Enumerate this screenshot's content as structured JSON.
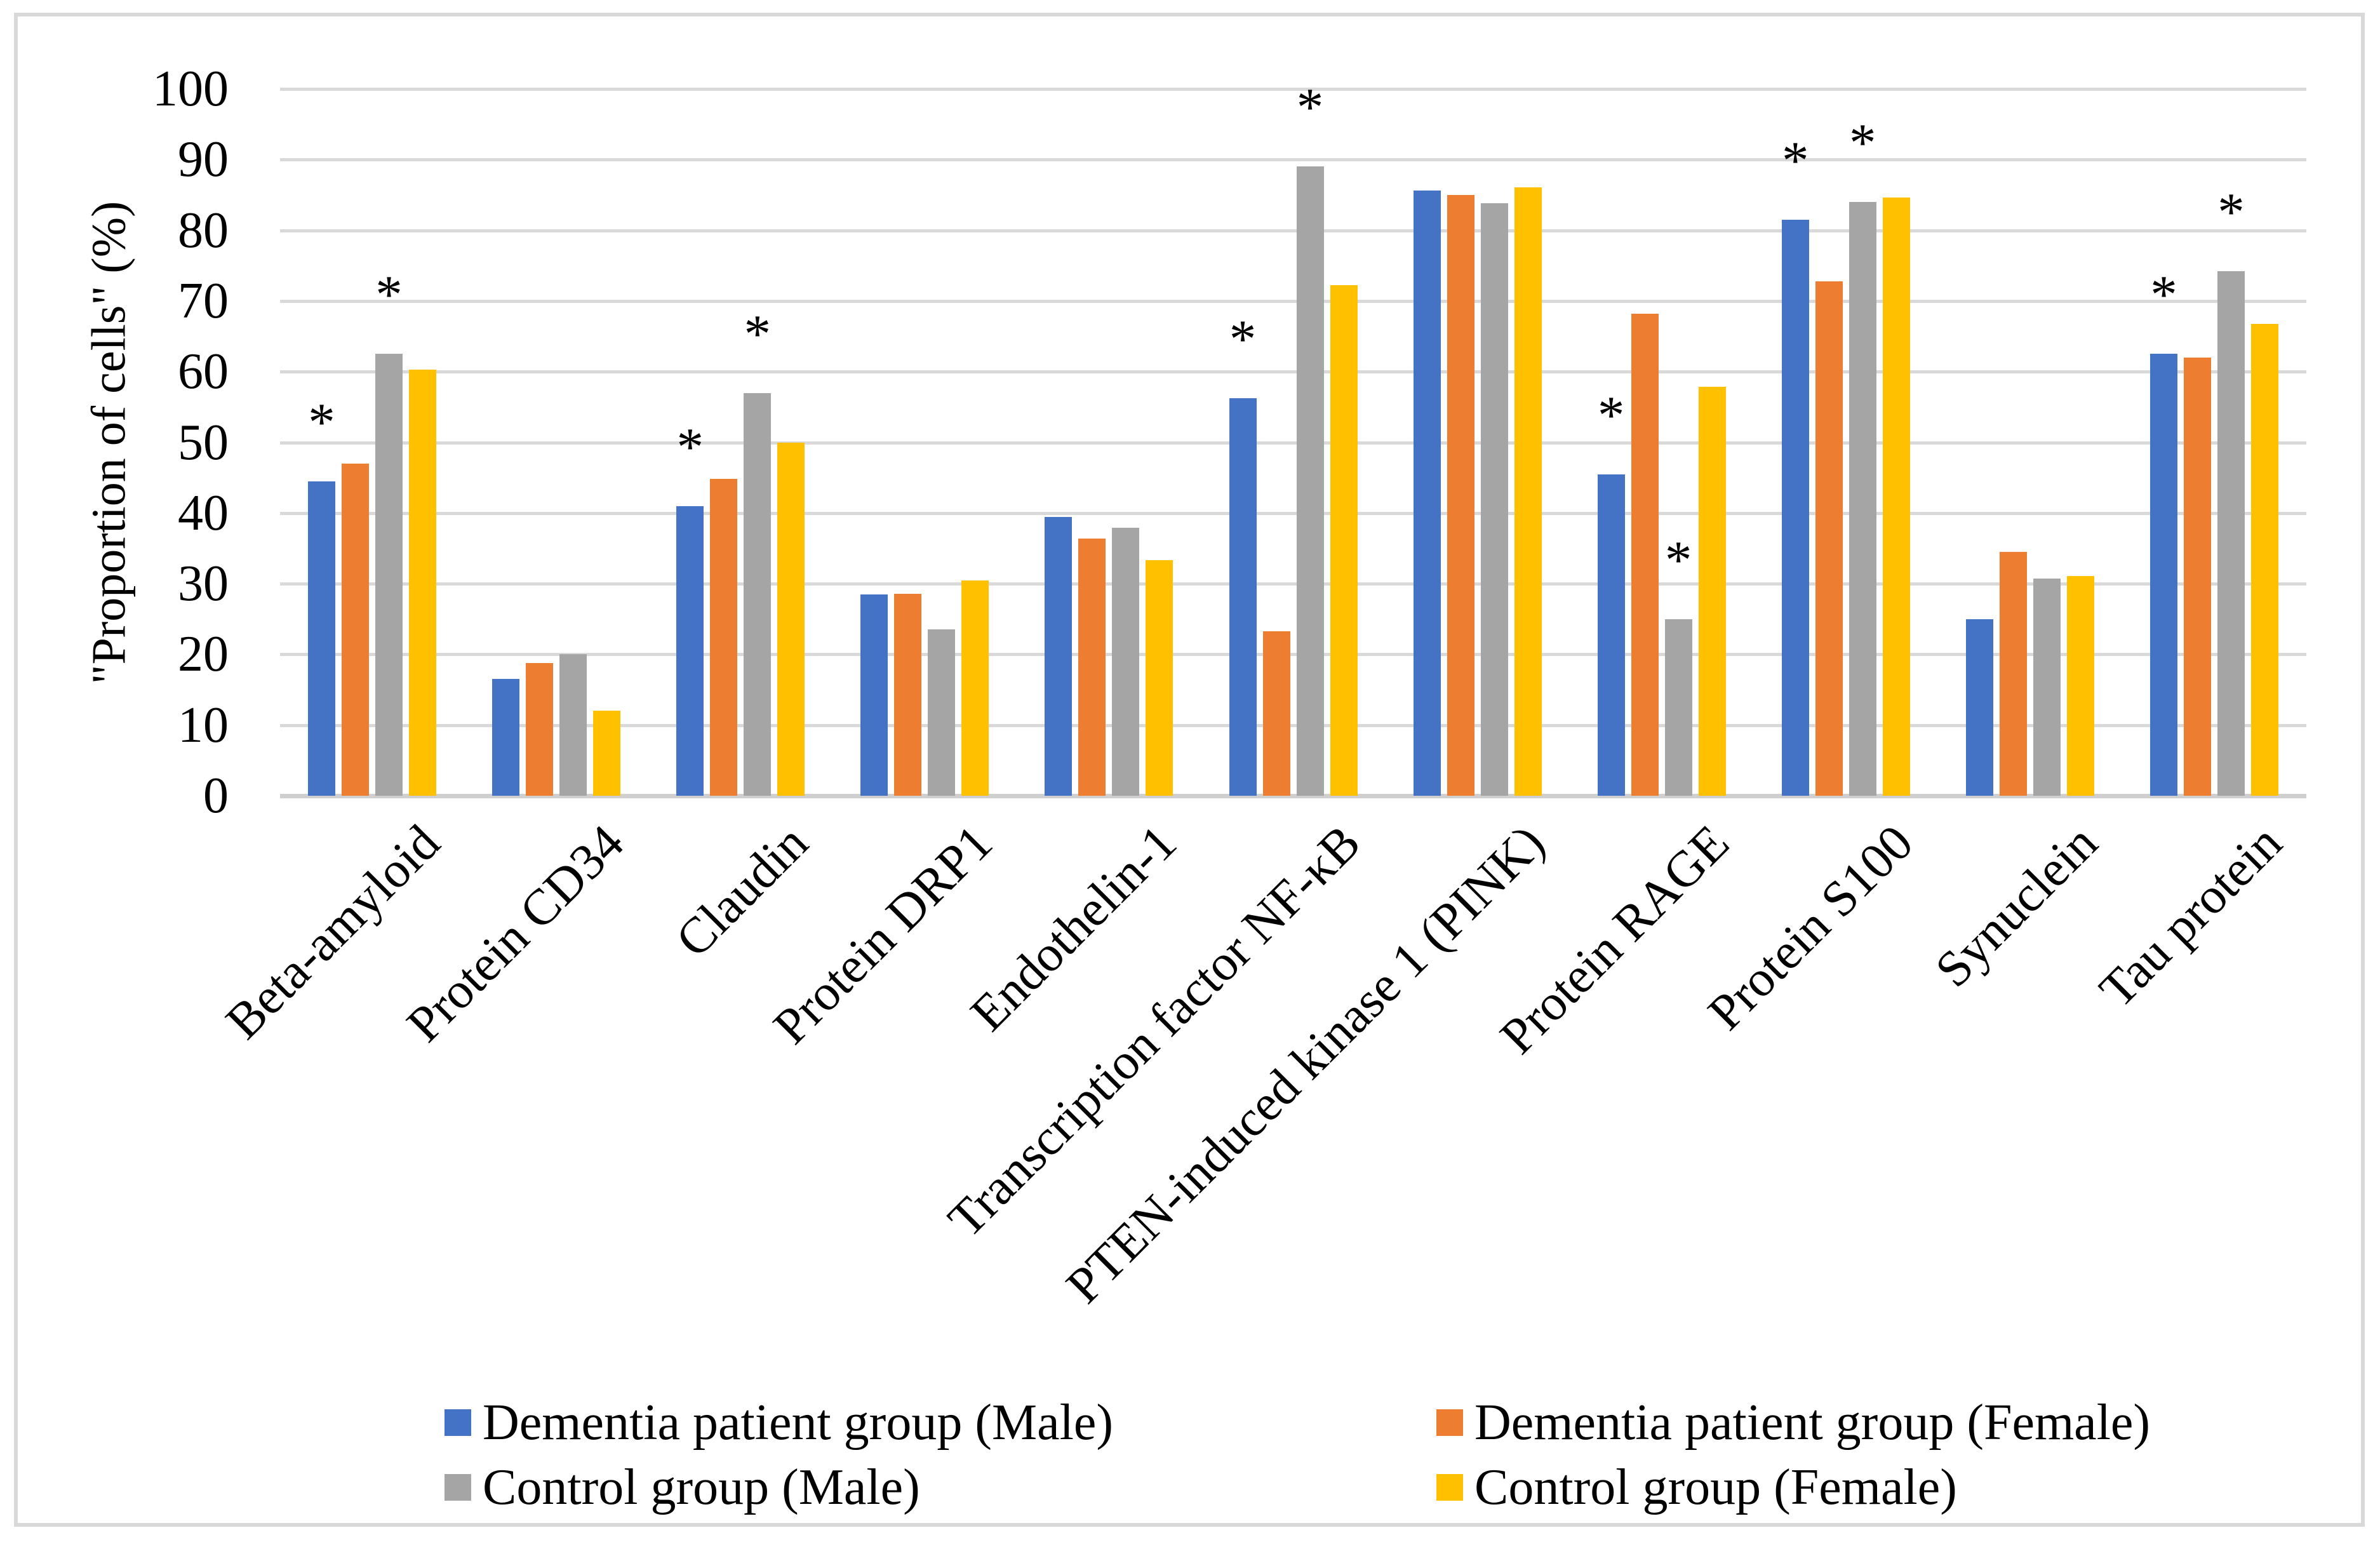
{
  "chart_data": {
    "type": "bar",
    "title": "",
    "ylabel": "\"Proportion of cells\" (%)",
    "xlabel": "",
    "ylim": [
      0,
      100
    ],
    "yticks": [
      0,
      10,
      20,
      30,
      40,
      50,
      60,
      70,
      80,
      90,
      100
    ],
    "grid": true,
    "legend_position": "bottom",
    "categories": [
      "Beta-amyloid",
      "Protein CD34",
      "Claudin",
      "Protein DRP1",
      "Endothelin-1",
      "Transcription factor NF-κB",
      "PTEN-induced kinase 1 (PINK)",
      "Protein RAGE",
      "Protein S100",
      "Synuclein",
      "Tau protein"
    ],
    "series": [
      {
        "name": "Dementia patient group (Male)",
        "color": "#4472C4",
        "values": [
          44.5,
          16.5,
          41.0,
          28.5,
          39.4,
          56.2,
          85.6,
          45.5,
          81.5,
          25.0,
          62.5
        ]
      },
      {
        "name": "Dementia patient group (Female)",
        "color": "#ED7D31",
        "values": [
          47.0,
          18.8,
          44.8,
          28.6,
          36.4,
          23.3,
          85.0,
          68.2,
          72.8,
          34.5,
          62.0
        ]
      },
      {
        "name": "Control group (Male)",
        "color": "#A5A5A5",
        "values": [
          62.5,
          20.0,
          57.0,
          23.5,
          37.9,
          89.0,
          83.8,
          25.0,
          84.0,
          30.7,
          74.2
        ]
      },
      {
        "name": "Control group (Female)",
        "color": "#FFC000",
        "values": [
          60.3,
          12.0,
          50.0,
          30.5,
          33.3,
          72.2,
          86.1,
          57.9,
          84.6,
          31.1,
          66.8
        ]
      }
    ],
    "annotations": {
      "symbol": "*",
      "starred": [
        {
          "category": "Beta-amyloid",
          "series_indices": [
            0,
            2
          ]
        },
        {
          "category": "Claudin",
          "series_indices": [
            0,
            2
          ]
        },
        {
          "category": "Transcription factor NF-κB",
          "series_indices": [
            0,
            2
          ]
        },
        {
          "category": "Protein RAGE",
          "series_indices": [
            0,
            2
          ]
        },
        {
          "category": "Protein S100",
          "series_indices": [
            0,
            2
          ]
        },
        {
          "category": "Tau protein",
          "series_indices": [
            0,
            2
          ]
        }
      ]
    }
  }
}
